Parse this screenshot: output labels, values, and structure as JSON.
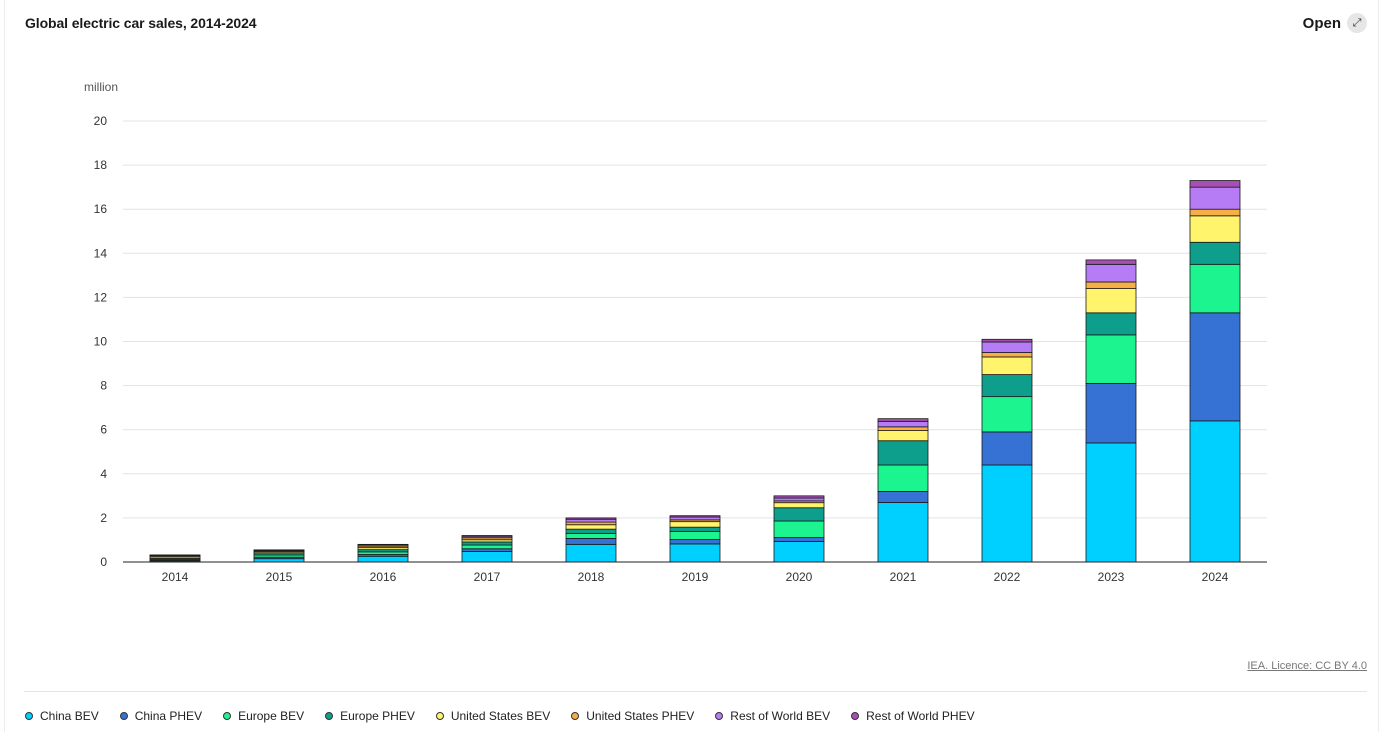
{
  "header": {
    "title": "Global electric car sales, 2014-2024",
    "open_label": "Open",
    "open_icon": "expand-icon"
  },
  "footer": {
    "credit": "IEA. Licence: CC BY 4.0"
  },
  "chart_data": {
    "type": "bar",
    "stacked": true,
    "unit_label": "million",
    "categories": [
      "2014",
      "2015",
      "2016",
      "2017",
      "2018",
      "2019",
      "2020",
      "2021",
      "2022",
      "2023",
      "2024"
    ],
    "ylim": [
      0,
      20
    ],
    "yticks": [
      0,
      2,
      4,
      6,
      8,
      10,
      12,
      14,
      16,
      18,
      20
    ],
    "grid": true,
    "legend_position": "bottom",
    "series": [
      {
        "name": "China BEV",
        "color": "#00d0ff",
        "values": [
          0.05,
          0.15,
          0.26,
          0.48,
          0.8,
          0.82,
          0.93,
          2.7,
          4.4,
          5.4,
          6.4
        ]
      },
      {
        "name": "China PHEV",
        "color": "#3672d4",
        "values": [
          0.02,
          0.07,
          0.08,
          0.12,
          0.27,
          0.2,
          0.18,
          0.5,
          1.5,
          2.7,
          4.9
        ]
      },
      {
        "name": "Europe BEV",
        "color": "#1cf58f",
        "values": [
          0.05,
          0.1,
          0.12,
          0.17,
          0.22,
          0.36,
          0.75,
          1.2,
          1.6,
          2.2,
          2.2
        ]
      },
      {
        "name": "Europe PHEV",
        "color": "#0e9f8c",
        "values": [
          0.04,
          0.1,
          0.1,
          0.14,
          0.2,
          0.2,
          0.6,
          1.1,
          1.0,
          1.0,
          1.0
        ]
      },
      {
        "name": "United States BEV",
        "color": "#fff46c",
        "values": [
          0.07,
          0.06,
          0.09,
          0.1,
          0.2,
          0.25,
          0.23,
          0.46,
          0.8,
          1.1,
          1.2
        ]
      },
      {
        "name": "United States PHEV",
        "color": "#f6ae45",
        "values": [
          0.05,
          0.04,
          0.07,
          0.09,
          0.12,
          0.08,
          0.08,
          0.17,
          0.2,
          0.3,
          0.3
        ]
      },
      {
        "name": "Rest of World BEV",
        "color": "#b57cf5",
        "values": [
          0.03,
          0.02,
          0.06,
          0.07,
          0.13,
          0.13,
          0.13,
          0.25,
          0.48,
          0.8,
          1.0
        ]
      },
      {
        "name": "Rest of World PHEV",
        "color": "#a74fb4",
        "values": [
          0.01,
          0.01,
          0.02,
          0.03,
          0.06,
          0.06,
          0.1,
          0.12,
          0.12,
          0.2,
          0.3
        ]
      }
    ]
  }
}
